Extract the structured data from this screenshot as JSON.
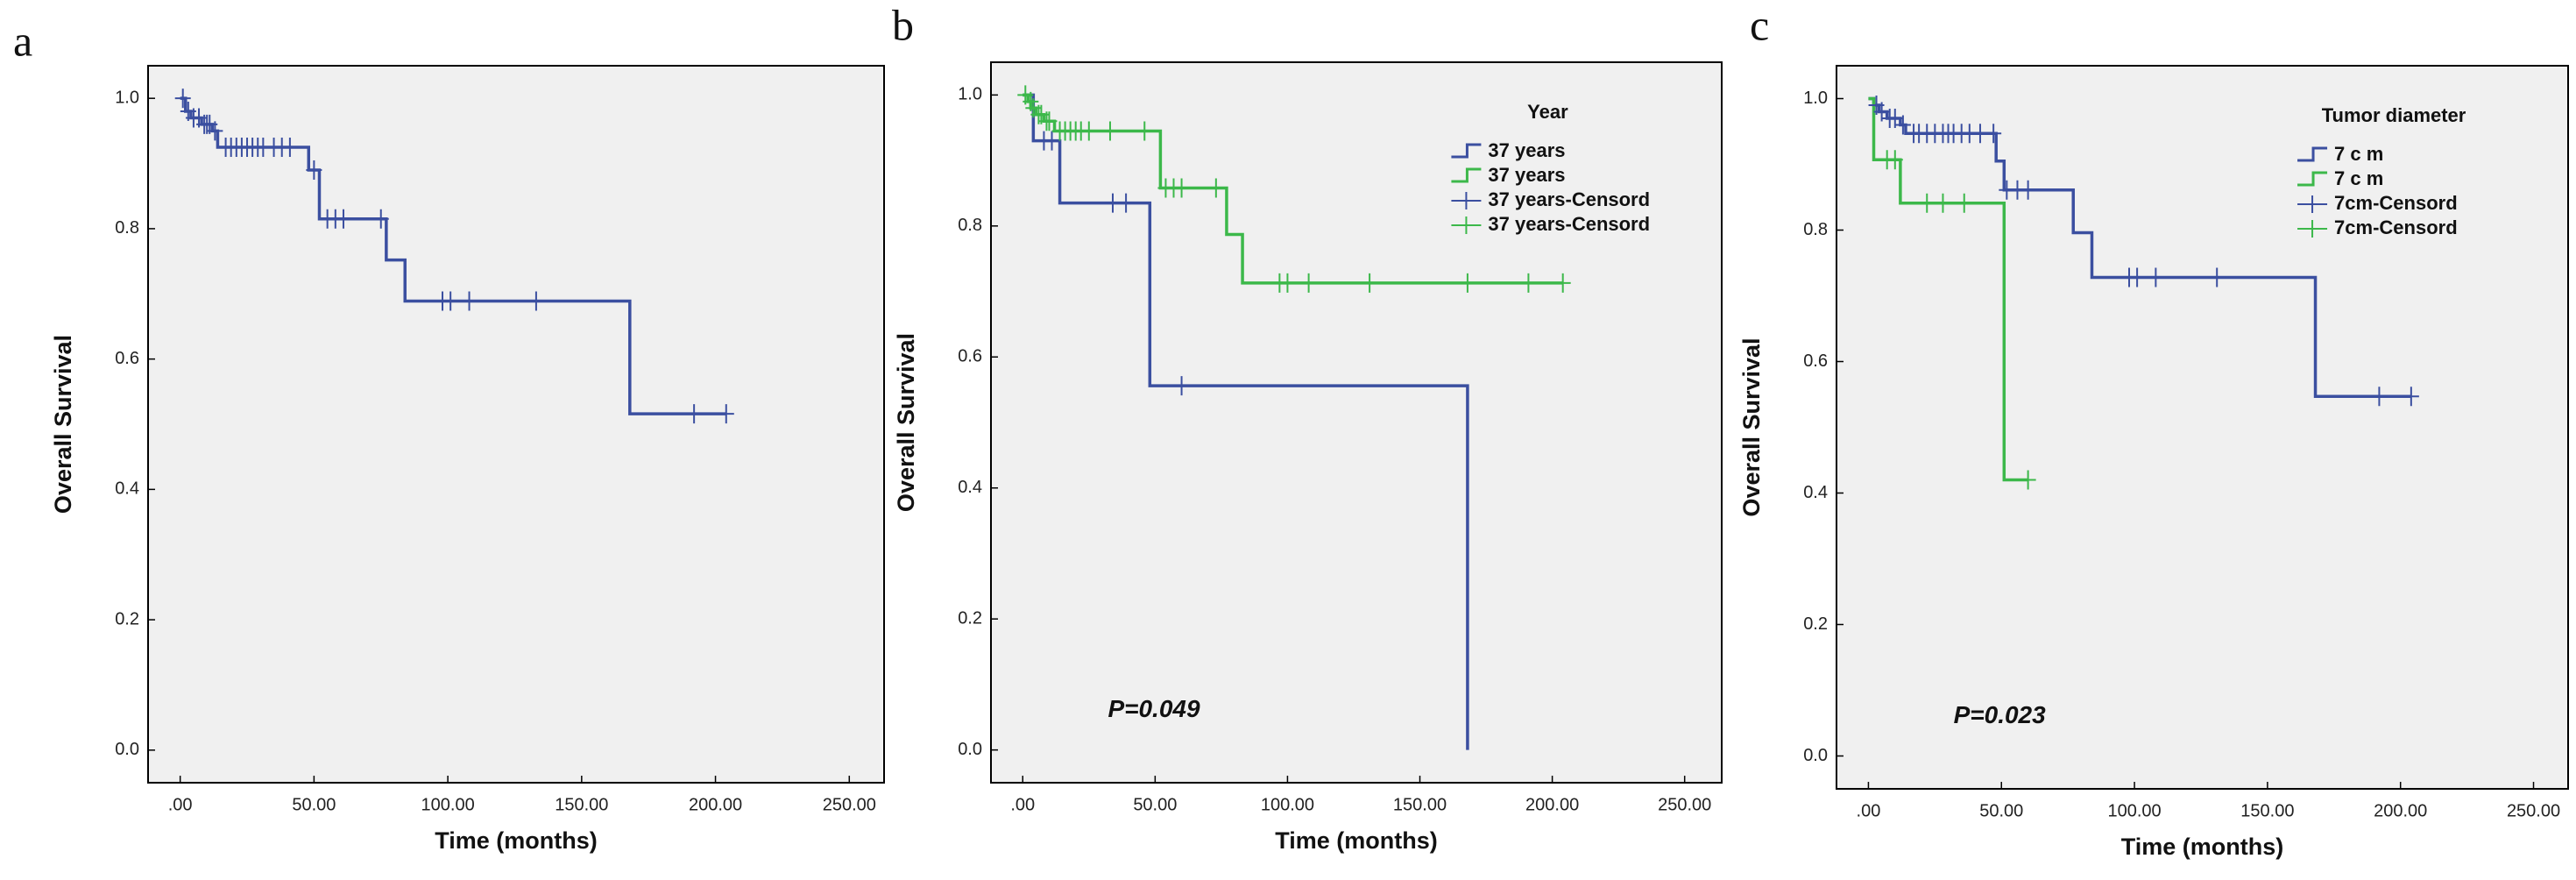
{
  "chart_data": [
    {
      "type": "km",
      "panel_label": "a",
      "x_label": "Time (months)",
      "y_label": "Overall Survival",
      "xlim": [
        -12,
        263
      ],
      "ylim": [
        -0.05,
        1.05
      ],
      "xticks": [
        {
          "value": 0,
          "label": ".00"
        },
        {
          "value": 50,
          "label": "50.00"
        },
        {
          "value": 100,
          "label": "100.00"
        },
        {
          "value": 150,
          "label": "150.00"
        },
        {
          "value": 200,
          "label": "200.00"
        },
        {
          "value": 250,
          "label": "250.00"
        }
      ],
      "yticks": [
        {
          "value": 0,
          "label": "0.0"
        },
        0.2,
        0.4,
        0.6,
        0.8,
        {
          "value": 1,
          "label": "1.0"
        }
      ],
      "series": [
        {
          "kind": "step",
          "color": "#3b4fa0",
          "x": [
            0,
            2,
            4,
            8,
            12,
            14,
            48,
            52,
            77,
            84,
            168,
            204
          ],
          "values": [
            1.0,
            0.98,
            0.97,
            0.96,
            0.95,
            0.925,
            0.89,
            0.815,
            0.752,
            0.689,
            0.516,
            0.516
          ]
        },
        {
          "kind": "censor",
          "color": "#3b4fa0",
          "x": [
            1,
            3,
            5,
            7,
            9,
            10,
            11,
            13,
            17,
            19,
            21,
            23,
            25,
            27,
            29,
            31,
            35,
            38,
            41,
            50,
            55,
            58,
            61,
            75,
            98,
            101,
            108,
            133,
            192,
            204
          ],
          "values": [
            1.0,
            0.98,
            0.97,
            0.97,
            0.96,
            0.96,
            0.96,
            0.95,
            0.925,
            0.925,
            0.925,
            0.925,
            0.925,
            0.925,
            0.925,
            0.925,
            0.925,
            0.925,
            0.925,
            0.89,
            0.815,
            0.815,
            0.815,
            0.815,
            0.689,
            0.689,
            0.689,
            0.689,
            0.516,
            0.516
          ]
        }
      ]
    },
    {
      "type": "km",
      "panel_label": "b",
      "x_label": "Time (months)",
      "y_label": "Overall Survival",
      "xlim": [
        -12,
        264
      ],
      "ylim": [
        -0.05,
        1.05
      ],
      "xticks": [
        {
          "value": 0,
          "label": ".00"
        },
        {
          "value": 50,
          "label": "50.00"
        },
        {
          "value": 100,
          "label": "100.00"
        },
        {
          "value": 150,
          "label": "150.00"
        },
        {
          "value": 200,
          "label": "200.00"
        },
        {
          "value": 250,
          "label": "250.00"
        }
      ],
      "yticks": [
        {
          "value": 0,
          "label": "0.0"
        },
        0.2,
        0.4,
        0.6,
        0.8,
        {
          "value": 1,
          "label": "1.0"
        }
      ],
      "legend_title": "Year",
      "annotation": "P=0.049",
      "series": [
        {
          "name": "37 years",
          "kind": "step",
          "color": "#3b4fa0",
          "x": [
            0,
            4,
            14,
            48,
            168
          ],
          "values": [
            1.0,
            0.93,
            0.835,
            0.556,
            0.0
          ]
        },
        {
          "name": "37 years",
          "kind": "step",
          "color": "#3cb84a",
          "x": [
            0,
            2,
            3,
            5,
            8,
            12,
            52,
            77,
            83,
            204
          ],
          "values": [
            1.0,
            0.99,
            0.98,
            0.97,
            0.96,
            0.945,
            0.858,
            0.787,
            0.713,
            0.713
          ]
        },
        {
          "name": "37 years-Censord",
          "kind": "censor",
          "color": "#3b4fa0",
          "x": [
            8,
            11,
            34,
            39,
            60
          ],
          "values": [
            0.93,
            0.93,
            0.835,
            0.835,
            0.556
          ]
        },
        {
          "name": "37 years-Censord",
          "kind": "censor",
          "color": "#3cb84a",
          "x": [
            1,
            3,
            4,
            6,
            7,
            9,
            10,
            14,
            16,
            18,
            20,
            22,
            25,
            33,
            46,
            54,
            57,
            60,
            73,
            97,
            100,
            108,
            131,
            168,
            191,
            204
          ],
          "values": [
            1.0,
            0.99,
            0.98,
            0.97,
            0.97,
            0.96,
            0.96,
            0.945,
            0.945,
            0.945,
            0.945,
            0.945,
            0.945,
            0.945,
            0.945,
            0.858,
            0.858,
            0.858,
            0.858,
            0.713,
            0.713,
            0.713,
            0.713,
            0.713,
            0.713,
            0.713
          ]
        }
      ]
    },
    {
      "type": "km",
      "panel_label": "c",
      "x_label": "Time (months)",
      "y_label": "Overall Survival",
      "xlim": [
        -12,
        263
      ],
      "ylim": [
        -0.05,
        1.05
      ],
      "xticks": [
        {
          "value": 0,
          "label": ".00"
        },
        {
          "value": 50,
          "label": "50.00"
        },
        {
          "value": 100,
          "label": "100.00"
        },
        {
          "value": 150,
          "label": "150.00"
        },
        {
          "value": 200,
          "label": "200.00"
        },
        {
          "value": 250,
          "label": "250.00"
        }
      ],
      "yticks": [
        {
          "value": 0,
          "label": "0.0"
        },
        0.2,
        0.4,
        0.6,
        0.8,
        {
          "value": 1,
          "label": "1.0"
        }
      ],
      "legend_title": "Tumor diameter",
      "annotation": "P=0.023",
      "series": [
        {
          "name": "7 c m",
          "kind": "step",
          "color": "#3b4fa0",
          "x": [
            0,
            2,
            4,
            7,
            12,
            14,
            48,
            51,
            77,
            84,
            168,
            204
          ],
          "values": [
            1.0,
            0.99,
            0.98,
            0.97,
            0.96,
            0.947,
            0.905,
            0.861,
            0.796,
            0.728,
            0.547,
            0.547
          ]
        },
        {
          "name": "7 c m",
          "kind": "step",
          "color": "#3cb84a",
          "x": [
            0,
            2,
            12,
            51,
            60
          ],
          "values": [
            1.0,
            0.907,
            0.841,
            0.42,
            0.42
          ]
        },
        {
          "name": "7cm-Censord",
          "kind": "censor",
          "color": "#3b4fa0",
          "x": [
            3,
            5,
            8,
            10,
            13,
            17,
            19,
            22,
            25,
            28,
            30,
            32,
            35,
            38,
            42,
            47,
            52,
            56,
            60,
            98,
            101,
            108,
            131,
            192,
            204
          ],
          "values": [
            0.99,
            0.98,
            0.97,
            0.97,
            0.96,
            0.947,
            0.947,
            0.947,
            0.947,
            0.947,
            0.947,
            0.947,
            0.947,
            0.947,
            0.947,
            0.947,
            0.861,
            0.861,
            0.861,
            0.728,
            0.728,
            0.728,
            0.728,
            0.547,
            0.547
          ]
        },
        {
          "name": "7cm-Censord",
          "kind": "censor",
          "color": "#3cb84a",
          "x": [
            7,
            10,
            22,
            28,
            36,
            60
          ],
          "values": [
            0.907,
            0.907,
            0.841,
            0.841,
            0.841,
            0.42
          ]
        }
      ]
    }
  ]
}
